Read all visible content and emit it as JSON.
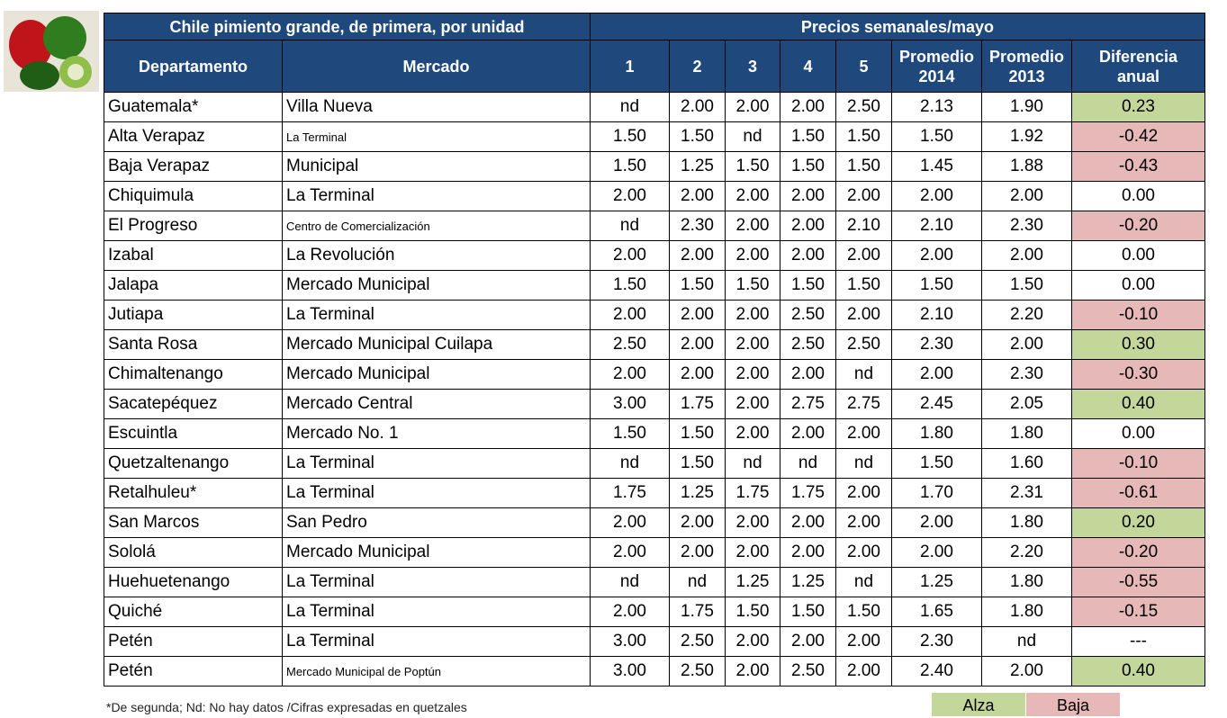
{
  "header": {
    "title": "Chile pimiento grande, de primera, por unidad",
    "period": "Precios semanales/mayo"
  },
  "columns": [
    "Departamento",
    "Mercado",
    "1",
    "2",
    "3",
    "4",
    "5",
    "Promedio 2014",
    "Promedio 2013",
    "Diferencia anual"
  ],
  "rows": [
    [
      "Guatemala*",
      "Villa Nueva",
      "nd",
      "2.00",
      "2.00",
      "2.00",
      "2.50",
      "2.13",
      "1.90",
      "0.23"
    ],
    [
      "Alta Verapaz",
      "La Terminal",
      "1.50",
      "1.50",
      "nd",
      "1.50",
      "1.50",
      "1.50",
      "1.92",
      "-0.42"
    ],
    [
      "Baja Verapaz",
      "Municipal",
      "1.50",
      "1.25",
      "1.50",
      "1.50",
      "1.50",
      "1.45",
      "1.88",
      "-0.43"
    ],
    [
      "Chiquimula",
      "La Terminal",
      "2.00",
      "2.00",
      "2.00",
      "2.00",
      "2.00",
      "2.00",
      "2.00",
      "0.00"
    ],
    [
      "El Progreso",
      "Centro de Comercialización",
      "nd",
      "2.30",
      "2.00",
      "2.00",
      "2.10",
      "2.10",
      "2.30",
      "-0.20"
    ],
    [
      "Izabal",
      "La Revolución",
      "2.00",
      "2.00",
      "2.00",
      "2.00",
      "2.00",
      "2.00",
      "2.00",
      "0.00"
    ],
    [
      "Jalapa",
      "Mercado Municipal",
      "1.50",
      "1.50",
      "1.50",
      "1.50",
      "1.50",
      "1.50",
      "1.50",
      "0.00"
    ],
    [
      "Jutiapa",
      "La Terminal",
      "2.00",
      "2.00",
      "2.00",
      "2.50",
      "2.00",
      "2.10",
      "2.20",
      "-0.10"
    ],
    [
      "Santa Rosa",
      "Mercado Municipal Cuilapa",
      "2.50",
      "2.00",
      "2.00",
      "2.50",
      "2.50",
      "2.30",
      "2.00",
      "0.30"
    ],
    [
      "Chimaltenango",
      "Mercado Municipal",
      "2.00",
      "2.00",
      "2.00",
      "2.00",
      "nd",
      "2.00",
      "2.30",
      "-0.30"
    ],
    [
      "Sacatepéquez",
      "Mercado Central",
      "3.00",
      "1.75",
      "2.00",
      "2.75",
      "2.75",
      "2.45",
      "2.05",
      "0.40"
    ],
    [
      "Escuintla",
      "Mercado No. 1",
      "1.50",
      "1.50",
      "2.00",
      "2.00",
      "2.00",
      "1.80",
      "1.80",
      "0.00"
    ],
    [
      "Quetzaltenango",
      "La Terminal",
      "nd",
      "1.50",
      "nd",
      "nd",
      "nd",
      "1.50",
      "1.60",
      "-0.10"
    ],
    [
      "Retalhuleu*",
      "La Terminal",
      "1.75",
      "1.25",
      "1.75",
      "1.75",
      "2.00",
      "1.70",
      "2.31",
      "-0.61"
    ],
    [
      "San Marcos",
      "San Pedro",
      "2.00",
      "2.00",
      "2.00",
      "2.00",
      "2.00",
      "2.00",
      "1.80",
      "0.20"
    ],
    [
      "Sololá",
      "Mercado Municipal",
      "2.00",
      "2.00",
      "2.00",
      "2.00",
      "2.00",
      "2.00",
      "2.20",
      "-0.20"
    ],
    [
      "Huehuetenango",
      "La Terminal",
      "nd",
      "nd",
      "1.25",
      "1.25",
      "nd",
      "1.25",
      "1.80",
      "-0.55"
    ],
    [
      "Quiché",
      "La Terminal",
      "2.00",
      "1.75",
      "1.50",
      "1.50",
      "1.50",
      "1.65",
      "1.80",
      "-0.15"
    ],
    [
      "Petén",
      "La Terminal",
      "3.00",
      "2.50",
      "2.00",
      "2.00",
      "2.00",
      "2.30",
      "nd",
      "---"
    ],
    [
      "Petén",
      "Mercado Municipal de Poptún",
      "3.00",
      "2.50",
      "2.00",
      "2.50",
      "2.00",
      "2.40",
      "2.00",
      "0.40"
    ]
  ],
  "footnote": "*De segunda;  Nd: No hay datos /Cifras expresadas en quetzales",
  "legend": [
    "Alza",
    "Baja"
  ]
}
